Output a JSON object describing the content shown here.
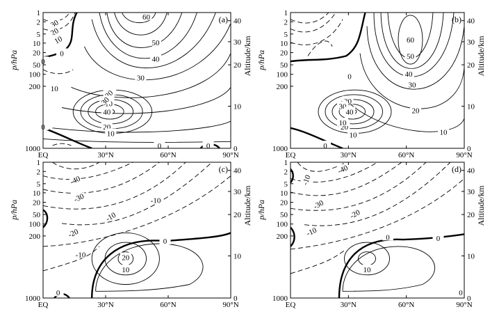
{
  "chart_data": [
    {
      "type": "contour",
      "panel_label": "(a)",
      "xlabel": "",
      "ylabel": "p/hPa",
      "y2label": "Altitude/km",
      "x_ticks": [
        "EQ",
        "30°N",
        "60°N",
        "90°N"
      ],
      "p_ticks": [
        "1",
        "2",
        "5",
        "10",
        "20",
        "50",
        "100",
        "200",
        "1000"
      ],
      "alt_ticks": [
        "0",
        "10",
        "20",
        "30",
        "40"
      ],
      "contour_interval": 5,
      "contour_labels": [
        "60",
        "50",
        "40",
        "30",
        "20",
        "10",
        "0",
        "30",
        "20",
        "10",
        "0",
        "10",
        "20",
        "30",
        "40",
        "20",
        "10",
        "0",
        "0",
        "0"
      ],
      "features": [
        {
          "kind": "jet-core",
          "lat": 30,
          "p_hPa": 200,
          "value": 40
        },
        {
          "kind": "polar-night-jet",
          "lat": 50,
          "p_hPa": 1.5,
          "value": 60
        }
      ]
    },
    {
      "type": "contour",
      "panel_label": "(b)",
      "xlabel": "",
      "ylabel": "p/hPa",
      "y2label": "Altitude/km",
      "x_ticks": [
        "EQ",
        "30°N",
        "60°N",
        "90°N"
      ],
      "p_ticks": [
        "1",
        "2",
        "5",
        "10",
        "20",
        "50",
        "100",
        "200",
        "1000"
      ],
      "alt_ticks": [
        "0",
        "10",
        "20",
        "30",
        "40"
      ],
      "contour_interval": 5,
      "contour_labels": [
        "60",
        "50",
        "40",
        "30",
        "20",
        "10",
        "0",
        "20",
        "30",
        "40",
        "10",
        "20",
        "10",
        "0"
      ],
      "features": [
        {
          "kind": "jet-core",
          "lat": 30,
          "p_hPa": 200,
          "value": 40
        },
        {
          "kind": "polar-night-jet",
          "lat": 63,
          "p_hPa": 4,
          "value": 60
        }
      ]
    },
    {
      "type": "contour",
      "panel_label": "(c)",
      "xlabel": "",
      "ylabel": "p/hPa",
      "y2label": "Altitude/km",
      "x_ticks": [
        "EQ",
        "30°N",
        "60°N",
        "90°N"
      ],
      "p_ticks": [
        "1",
        "2",
        "5",
        "10",
        "20",
        "50",
        "100",
        "200",
        "1000"
      ],
      "alt_ticks": [
        "0",
        "10",
        "20",
        "30",
        "40"
      ],
      "contour_interval": 5,
      "contour_labels": [
        "-40",
        "-30",
        "-10",
        "-10",
        "-20",
        "-10",
        "0",
        "20",
        "10",
        "0"
      ],
      "features": [
        {
          "kind": "jet-core",
          "lat": 43,
          "p_hPa": 200,
          "value": 20
        },
        {
          "kind": "easterly-core",
          "lat": 10,
          "p_hPa": 2,
          "value": -40
        }
      ]
    },
    {
      "type": "contour",
      "panel_label": "(d)",
      "xlabel": "",
      "ylabel": "p/hPa",
      "y2label": "Altitude/km",
      "x_ticks": [
        "EQ",
        "30°N",
        "60°N",
        "90°N"
      ],
      "p_ticks": [
        "1",
        "2",
        "5",
        "10",
        "20",
        "50",
        "100",
        "200",
        "1000"
      ],
      "alt_ticks": [
        "0",
        "10",
        "20",
        "30",
        "40"
      ],
      "contour_interval": 5,
      "contour_labels": [
        "-40",
        "-10",
        "-30",
        "-20",
        "-10",
        "0",
        "0",
        "10",
        "0"
      ],
      "features": [
        {
          "kind": "jet-core",
          "lat": 43,
          "p_hPa": 200,
          "value": 20
        },
        {
          "kind": "easterly-core",
          "lat": 10,
          "p_hPa": 2,
          "value": -40
        }
      ]
    }
  ],
  "colors": {
    "line": "#000000",
    "background": "#ffffff"
  }
}
